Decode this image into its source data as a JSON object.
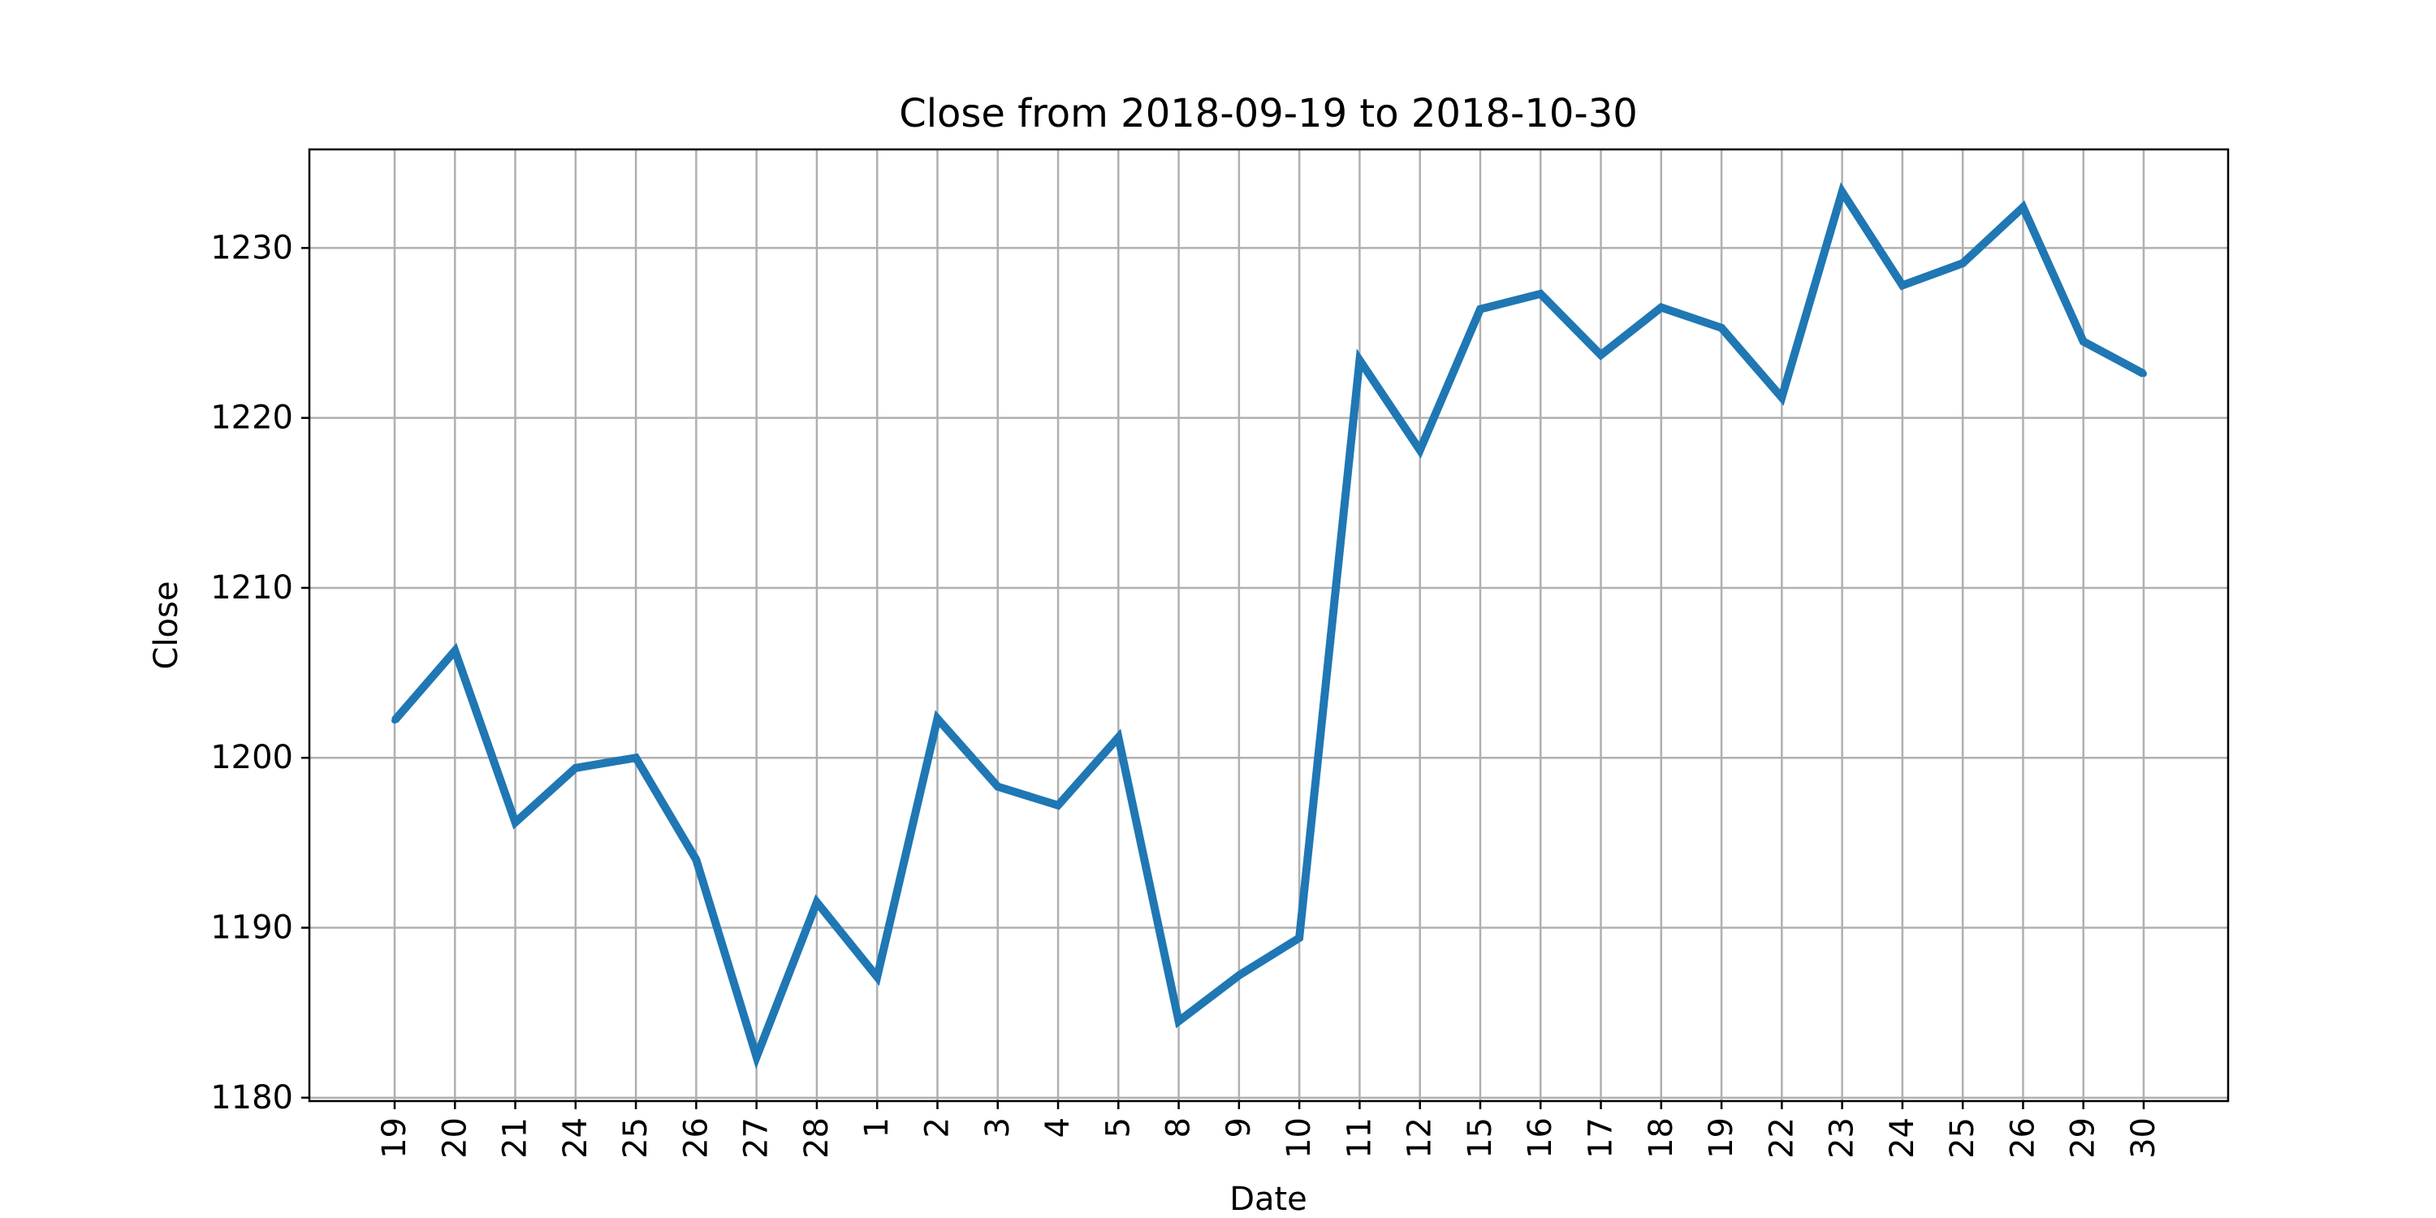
{
  "chart_data": {
    "type": "line",
    "title": "Close from 2018-09-19 to 2018-10-30",
    "xlabel": "Date",
    "ylabel": "Close",
    "x": [
      "2018-09-19",
      "2018-09-20",
      "2018-09-21",
      "2018-09-24",
      "2018-09-25",
      "2018-09-26",
      "2018-09-27",
      "2018-09-28",
      "2018-10-01",
      "2018-10-02",
      "2018-10-03",
      "2018-10-04",
      "2018-10-05",
      "2018-10-08",
      "2018-10-09",
      "2018-10-10",
      "2018-10-11",
      "2018-10-12",
      "2018-10-15",
      "2018-10-16",
      "2018-10-17",
      "2018-10-18",
      "2018-10-19",
      "2018-10-22",
      "2018-10-23",
      "2018-10-24",
      "2018-10-25",
      "2018-10-26",
      "2018-10-29",
      "2018-10-30"
    ],
    "categories": [
      "19",
      "20",
      "21",
      "24",
      "25",
      "26",
      "27",
      "28",
      "1",
      "2",
      "3",
      "4",
      "5",
      "8",
      "9",
      "10",
      "11",
      "12",
      "15",
      "16",
      "17",
      "18",
      "19",
      "22",
      "23",
      "24",
      "25",
      "26",
      "29",
      "30"
    ],
    "series": [
      {
        "values": [
          1202.2,
          1206.3,
          1196.2,
          1199.4,
          1200.0,
          1194.0,
          1182.4,
          1191.5,
          1187.1,
          1202.3,
          1198.3,
          1197.2,
          1201.2,
          1184.5,
          1187.2,
          1189.4,
          1223.4,
          1218.1,
          1226.4,
          1227.3,
          1223.7,
          1226.5,
          1225.3,
          1221.2,
          1233.3,
          1227.8,
          1229.1,
          1232.4,
          1224.5,
          1222.6
        ],
        "color": "#1f77b4"
      }
    ],
    "yticks": [
      "1180",
      "1190",
      "1200",
      "1210",
      "1220",
      "1230"
    ],
    "ylim": [
      1179.8,
      1235.8
    ],
    "grid": true
  }
}
